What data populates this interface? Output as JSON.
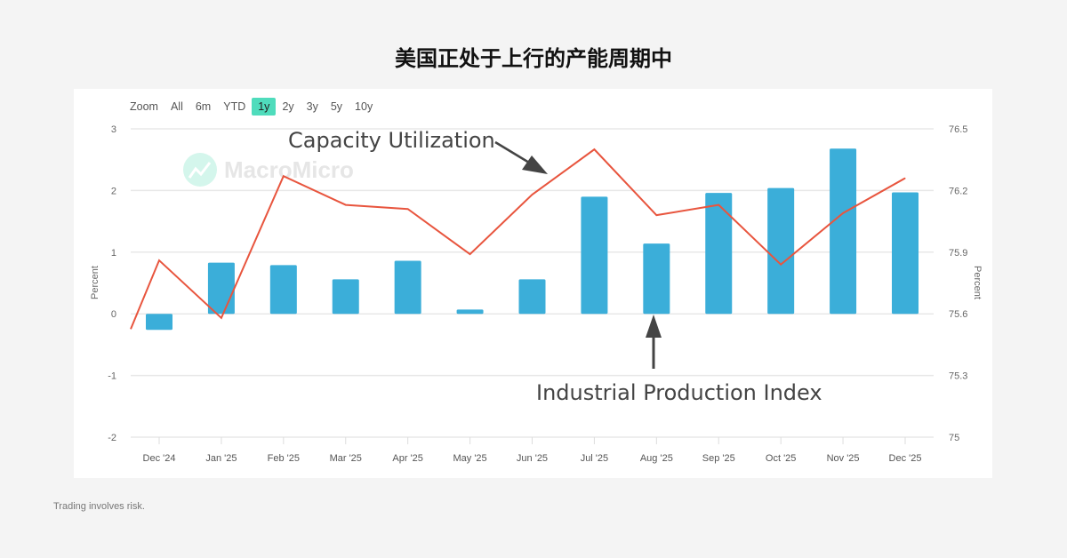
{
  "title": "美国正处于上行的产能周期中",
  "footer": "Trading involves risk.",
  "zoom": {
    "label": "Zoom",
    "options": [
      "All",
      "6m",
      "YTD",
      "1y",
      "2y",
      "3y",
      "5y",
      "10y"
    ],
    "active": "1y"
  },
  "watermark": "MacroMicro",
  "colors": {
    "bar": "#3baed9",
    "line": "#e8553e",
    "accent": "#4fdcbc",
    "background": "#f4f4f4"
  },
  "chart_data": {
    "type": "bar+line",
    "categories": [
      "Dec '24",
      "Jan '25",
      "Feb '25",
      "Mar '25",
      "Apr '25",
      "May '25",
      "Jun '25",
      "Jul '25",
      "Aug '25",
      "Sep '25",
      "Oct '25",
      "Nov '25",
      "Dec '25"
    ],
    "series": [
      {
        "name": "Industrial Production Index",
        "type": "bar",
        "axis": "left",
        "values": [
          -0.26,
          0.83,
          0.79,
          0.56,
          0.86,
          0.07,
          0.56,
          1.9,
          1.14,
          1.96,
          2.04,
          2.68,
          1.97
        ]
      },
      {
        "name": "Capacity Utilization",
        "type": "line",
        "axis": "right",
        "prior_value": 75.13,
        "values": [
          75.86,
          75.58,
          76.27,
          76.13,
          76.11,
          75.89,
          76.18,
          76.4,
          76.08,
          76.13,
          75.84,
          76.09,
          76.26
        ]
      }
    ],
    "left_axis": {
      "label": "Percent",
      "ticks": [
        "3",
        "2",
        "1",
        "0",
        "-1",
        "-2"
      ],
      "range": [
        -2,
        3
      ]
    },
    "right_axis": {
      "label": "Percent",
      "ticks": [
        "76.5",
        "76.2",
        "75.9",
        "75.6",
        "75.3",
        "75"
      ],
      "range": [
        75,
        76.5
      ]
    },
    "grid": true,
    "annotations": [
      "Capacity Utilization",
      "Industrial Production Index"
    ]
  }
}
